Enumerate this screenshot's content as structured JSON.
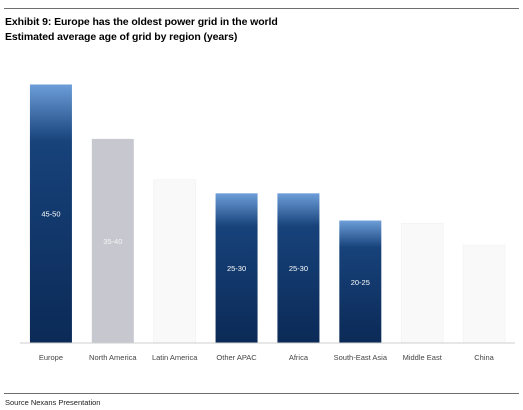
{
  "header": {
    "title": "Exhibit 9: Europe has the oldest power grid in the world",
    "subtitle": "Estimated average age of grid by region (years)"
  },
  "footer": {
    "source": "Source Nexans Presentation"
  },
  "colors": {
    "dark_bar_top": "#6d9ed9",
    "dark_bar_bottom": "#0b2a57",
    "grey_bar": "#c7c8cf",
    "faint_bar": "#f9f9f9",
    "baseline": "#cfcfcf"
  },
  "chart_data": {
    "type": "bar",
    "categories": [
      "Europe",
      "North America",
      "Latin America",
      "Other APAC",
      "Africa",
      "South-East Asia",
      "Middle East",
      "China"
    ],
    "values": [
      47.5,
      37.5,
      30,
      27.5,
      27.5,
      22.5,
      22,
      18
    ],
    "data_labels": [
      "45-50",
      "35-40",
      "",
      "25-30",
      "25-30",
      "20-25",
      "",
      ""
    ],
    "bar_styles": [
      "dark",
      "grey",
      "faint",
      "dark",
      "dark",
      "dark",
      "faint",
      "faint"
    ],
    "title": "Exhibit 9: Europe has the oldest power grid in the world",
    "subtitle": "Estimated average age of grid by region (years)",
    "ylim": [
      0,
      52
    ],
    "grid": false,
    "legend": "none"
  }
}
